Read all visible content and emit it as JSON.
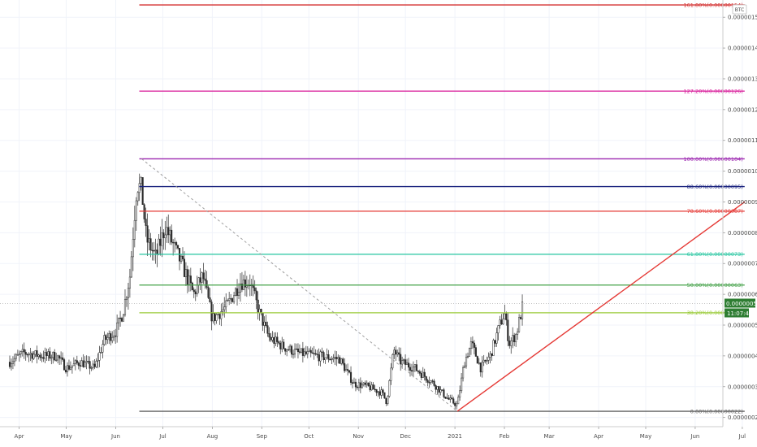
{
  "chart_data": {
    "type": "candlestick",
    "currency": "BTC",
    "y_range": [
      1.7e-07,
      1.556e-06
    ],
    "x_range": [
      0,
      17.1
    ],
    "y_ticks": [
      {
        "value": 2e-07,
        "label": "0.00000020"
      },
      {
        "value": 3e-07,
        "label": "0.00000030"
      },
      {
        "value": 4e-07,
        "label": "0.00000040"
      },
      {
        "value": 5e-07,
        "label": "0.00000050"
      },
      {
        "value": 6e-07,
        "label": "0.00000060"
      },
      {
        "value": 7e-07,
        "label": "0.00000070"
      },
      {
        "value": 8e-07,
        "label": "0.00000080"
      },
      {
        "value": 9e-07,
        "label": "0.00000090"
      },
      {
        "value": 1e-06,
        "label": "0.00000100"
      },
      {
        "value": 1.1e-06,
        "label": "0.00000110"
      },
      {
        "value": 1.2e-06,
        "label": "0.00000120"
      },
      {
        "value": 1.3e-06,
        "label": "0.00000130"
      },
      {
        "value": 1.4e-06,
        "label": "0.00000140"
      },
      {
        "value": 1.5e-06,
        "label": "0.00000150"
      }
    ],
    "x_ticks": [
      {
        "value": 0.2,
        "label": "Apr"
      },
      {
        "value": 1.2,
        "label": "May"
      },
      {
        "value": 2.25,
        "label": "Jun"
      },
      {
        "value": 3.25,
        "label": "Jul"
      },
      {
        "value": 4.3,
        "label": "Aug"
      },
      {
        "value": 5.35,
        "label": "Sep"
      },
      {
        "value": 6.35,
        "label": "Oct"
      },
      {
        "value": 7.4,
        "label": "Nov"
      },
      {
        "value": 8.4,
        "label": "Dec"
      },
      {
        "value": 9.45,
        "label": "2021"
      },
      {
        "value": 10.5,
        "label": "Feb"
      },
      {
        "value": 11.45,
        "label": "Mar"
      },
      {
        "value": 12.5,
        "label": "Apr"
      },
      {
        "value": 13.5,
        "label": "May"
      },
      {
        "value": 14.55,
        "label": "Jun"
      },
      {
        "value": 15.55,
        "label": "Jul"
      }
    ],
    "fib_levels": [
      {
        "label": "161.80%(0.00000154)",
        "value": 1.54e-06,
        "color": "#d32f2f"
      },
      {
        "label": "127.20%(0.00000126)",
        "value": 1.26e-06,
        "color": "#d81b9a"
      },
      {
        "label": "100.00%(0.00000104)",
        "value": 1.04e-06,
        "color": "#9c27b0"
      },
      {
        "label": "88.60%(0.00000095)",
        "value": 9.5e-07,
        "color": "#1a237e"
      },
      {
        "label": "78.60%(0.00000087)",
        "value": 8.7e-07,
        "color": "#e53935"
      },
      {
        "label": "61.80%(0.00000073)",
        "value": 7.3e-07,
        "color": "#26c6a0"
      },
      {
        "label": "50.00%(0.00000063)",
        "value": 6.3e-07,
        "color": "#43a047"
      },
      {
        "label": "38.20%(0.00000054)",
        "value": 5.4e-07,
        "color": "#9ccc3c"
      },
      {
        "label": "0.00%(0.00000022)",
        "value": 2.2e-07,
        "color": "#616161"
      }
    ],
    "fib_x_start": 2.75,
    "fib_x_end": 15.6,
    "fib_diagonal": {
      "from": [
        2.8,
        1.04e-06
      ],
      "to": [
        9.5,
        2.2e-07
      ],
      "color": "#9e9e9e"
    },
    "trendline": {
      "from": [
        9.5,
        2.2e-07
      ],
      "to": [
        15.6,
        9e-07
      ],
      "color": "#e53935"
    },
    "price_marker": {
      "value": 5.7e-07,
      "label": "0.00000057",
      "color": "#2e7d32"
    },
    "countdown": {
      "label": "11:07:49",
      "color": "#2e7d32"
    },
    "price_path": [
      [
        0.0,
        3.8e-07
      ],
      [
        0.3,
        4.1e-07
      ],
      [
        0.7,
        4e-07
      ],
      [
        1.0,
        4e-07
      ],
      [
        1.2,
        3.6e-07
      ],
      [
        1.5,
        3.8e-07
      ],
      [
        1.8,
        3.6e-07
      ],
      [
        2.0,
        4.5e-07
      ],
      [
        2.25,
        4.8e-07
      ],
      [
        2.4,
        5.4e-07
      ],
      [
        2.55,
        6.6e-07
      ],
      [
        2.7,
        9.6e-07
      ],
      [
        2.8,
        9.4e-07
      ],
      [
        2.9,
        7.8e-07
      ],
      [
        3.1,
        7.2e-07
      ],
      [
        3.3,
        8.2e-07
      ],
      [
        3.5,
        7.5e-07
      ],
      [
        3.7,
        6.8e-07
      ],
      [
        3.9,
        6e-07
      ],
      [
        4.1,
        6.6e-07
      ],
      [
        4.3,
        5.2e-07
      ],
      [
        4.6,
        5.6e-07
      ],
      [
        4.9,
        6.4e-07
      ],
      [
        5.1,
        6.4e-07
      ],
      [
        5.3,
        5.4e-07
      ],
      [
        5.5,
        4.6e-07
      ],
      [
        5.8,
        4.3e-07
      ],
      [
        6.1,
        4.1e-07
      ],
      [
        6.5,
        4e-07
      ],
      [
        7.0,
        3.9e-07
      ],
      [
        7.3,
        3.1e-07
      ],
      [
        7.6,
        3e-07
      ],
      [
        7.9,
        2.8e-07
      ],
      [
        8.0,
        2.5e-07
      ],
      [
        8.15,
        4.2e-07
      ],
      [
        8.3,
        3.8e-07
      ],
      [
        8.6,
        3.6e-07
      ],
      [
        9.0,
        3.1e-07
      ],
      [
        9.3,
        2.6e-07
      ],
      [
        9.5,
        2.4e-07
      ],
      [
        9.65,
        3.8e-07
      ],
      [
        9.8,
        4.4e-07
      ],
      [
        10.0,
        3.6e-07
      ],
      [
        10.2,
        4e-07
      ],
      [
        10.4,
        5e-07
      ],
      [
        10.5,
        5.4e-07
      ],
      [
        10.6,
        4.4e-07
      ],
      [
        10.75,
        4.7e-07
      ],
      [
        10.9,
        5.7e-07
      ]
    ]
  }
}
